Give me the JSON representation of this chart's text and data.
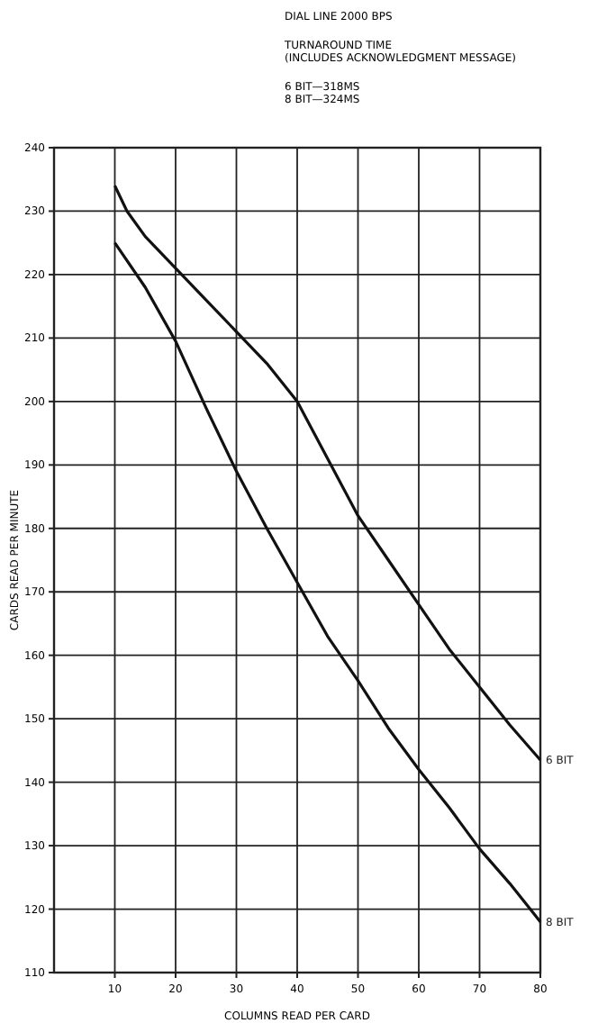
{
  "chart_data": {
    "type": "line",
    "title": "DIAL LINE 2000 BPS",
    "subtitle": "TURNAROUND TIME\n(INCLUDES ACKNOWLEDGMENT MESSAGE)",
    "annotations": [
      "6 BIT—318MS",
      "8 BIT—324MS"
    ],
    "xlabel": "COLUMNS READ PER CARD",
    "ylabel": "CARDS READ PER MINUTE",
    "xlim": [
      0,
      80
    ],
    "xticks": [
      10,
      20,
      30,
      40,
      50,
      60,
      70,
      80
    ],
    "ylim": [
      110,
      240
    ],
    "yticks": [
      110,
      120,
      130,
      140,
      150,
      160,
      170,
      180,
      190,
      200,
      210,
      220,
      230,
      240
    ],
    "grid": true,
    "marker": "none",
    "line_style": "solid",
    "series": [
      {
        "name": "6 BIT",
        "color": "#111111",
        "x": [
          10,
          12,
          15,
          20,
          25,
          30,
          35,
          40,
          45,
          50,
          55,
          60,
          65,
          70,
          75,
          80
        ],
        "values": [
          234,
          230,
          226,
          221,
          216,
          211,
          206,
          200,
          191,
          182,
          175,
          168,
          161,
          155,
          149,
          143.5
        ]
      },
      {
        "name": "8 BIT",
        "color": "#111111",
        "x": [
          10,
          15,
          20,
          25,
          30,
          35,
          40,
          45,
          50,
          55,
          60,
          65,
          70,
          75,
          80
        ],
        "values": [
          225,
          218,
          209.5,
          199,
          189,
          180,
          171.5,
          163,
          156,
          148.5,
          142,
          136,
          129.5,
          124,
          118
        ]
      }
    ]
  }
}
